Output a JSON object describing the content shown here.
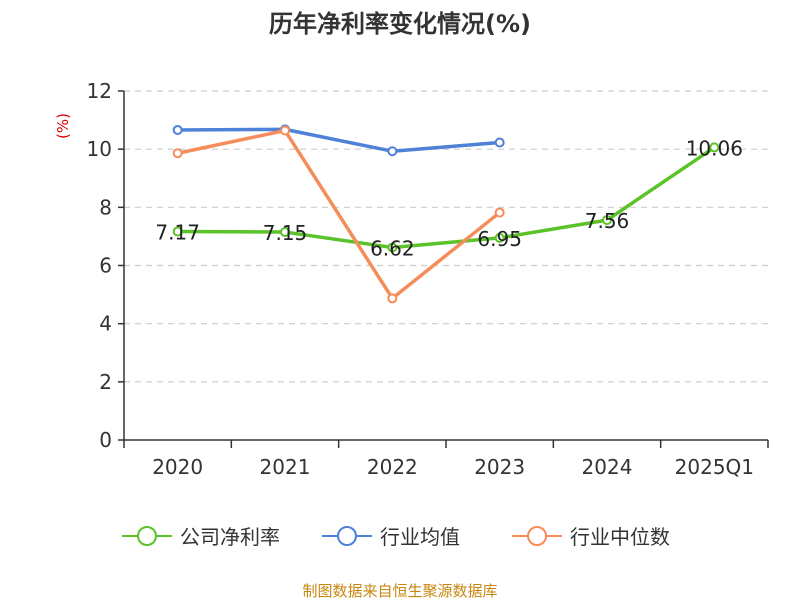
{
  "chart_data": {
    "type": "line",
    "title": "历年净利率变化情况(%)",
    "unit_label": "(%)",
    "categories": [
      "2020",
      "2021",
      "2022",
      "2023",
      "2024",
      "2025Q1"
    ],
    "ylim": [
      0,
      12
    ],
    "yticks": [
      0,
      2,
      4,
      6,
      8,
      10,
      12
    ],
    "grid": true,
    "legend_position": "bottom",
    "series": [
      {
        "name": "公司净利率",
        "color": "#5cc22a",
        "values": [
          7.17,
          7.15,
          6.62,
          6.95,
          7.56,
          10.06
        ],
        "show_labels": true,
        "labels": [
          "7.17",
          "7.15",
          "6.62",
          "6.95",
          "7.56",
          "10.06"
        ]
      },
      {
        "name": "行业均值",
        "color": "#4f81d9",
        "values": [
          10.66,
          10.68,
          9.93,
          10.23,
          null,
          null
        ],
        "show_labels": false
      },
      {
        "name": "行业中位数",
        "color": "#f58d5a",
        "values": [
          9.86,
          10.64,
          4.87,
          7.82,
          null,
          null
        ],
        "show_labels": false
      }
    ]
  },
  "source": "制图数据来自恒生聚源数据库"
}
